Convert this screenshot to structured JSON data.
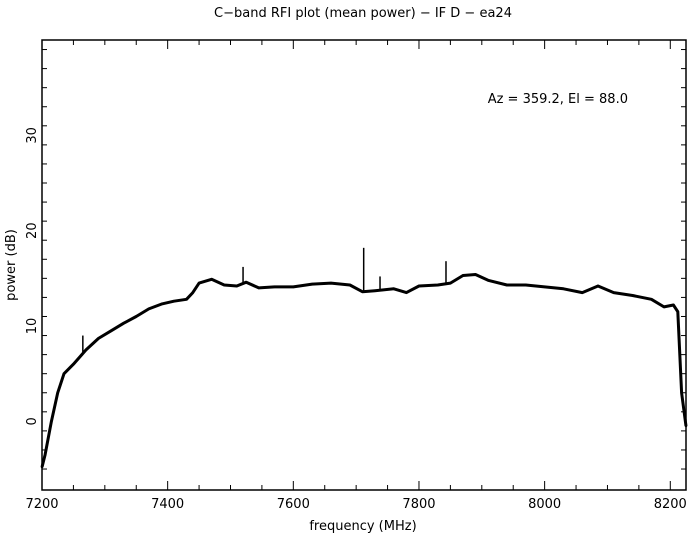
{
  "chart_data": {
    "type": "line",
    "title": "C−band RFI plot (mean power) − IF D − ea24",
    "xlabel": "frequency (MHz)",
    "ylabel": "power (dB)",
    "annotation": "Az = 359.2, El = 88.0",
    "xlim": [
      7200,
      8225
    ],
    "ylim": [
      -7.2,
      40
    ],
    "xticks": [
      7200,
      7400,
      7600,
      7800,
      8000,
      8200
    ],
    "xtick_labels": [
      "7200",
      "7400",
      "7600",
      "7800",
      "8000",
      "8200"
    ],
    "yticks": [
      0,
      10,
      20,
      30
    ],
    "ytick_labels": [
      "0",
      "10",
      "20",
      "30"
    ],
    "grid": false,
    "series": [
      {
        "name": "mean power",
        "x": [
          7200,
          7205,
          7215,
          7225,
          7235,
          7250,
          7270,
          7290,
          7310,
          7330,
          7350,
          7370,
          7390,
          7410,
          7430,
          7440,
          7450,
          7470,
          7490,
          7510,
          7525,
          7545,
          7570,
          7600,
          7630,
          7660,
          7690,
          7710,
          7730,
          7760,
          7780,
          7800,
          7830,
          7850,
          7870,
          7890,
          7910,
          7940,
          7970,
          8000,
          8030,
          8060,
          8085,
          8110,
          8140,
          8170,
          8190,
          8205,
          8212,
          8218,
          8225
        ],
        "y": [
          -4.8,
          -3.5,
          0,
          3,
          5,
          6,
          7.5,
          8.7,
          9.5,
          10.3,
          11,
          11.8,
          12.3,
          12.6,
          12.8,
          13.5,
          14.5,
          14.9,
          14.3,
          14.2,
          14.6,
          14.0,
          14.1,
          14.1,
          14.4,
          14.5,
          14.3,
          13.6,
          13.7,
          13.9,
          13.5,
          14.2,
          14.3,
          14.5,
          15.3,
          15.4,
          14.8,
          14.3,
          14.3,
          14.1,
          13.9,
          13.5,
          14.2,
          13.5,
          13.2,
          12.8,
          12.0,
          12.2,
          11.5,
          3,
          -0.5
        ]
      }
    ],
    "spikes": [
      {
        "x": 7265,
        "y": 9.0
      },
      {
        "x": 7520,
        "y": 16.2
      },
      {
        "x": 7712,
        "y": 18.2
      },
      {
        "x": 7738,
        "y": 15.2
      },
      {
        "x": 7843,
        "y": 16.8
      }
    ]
  }
}
